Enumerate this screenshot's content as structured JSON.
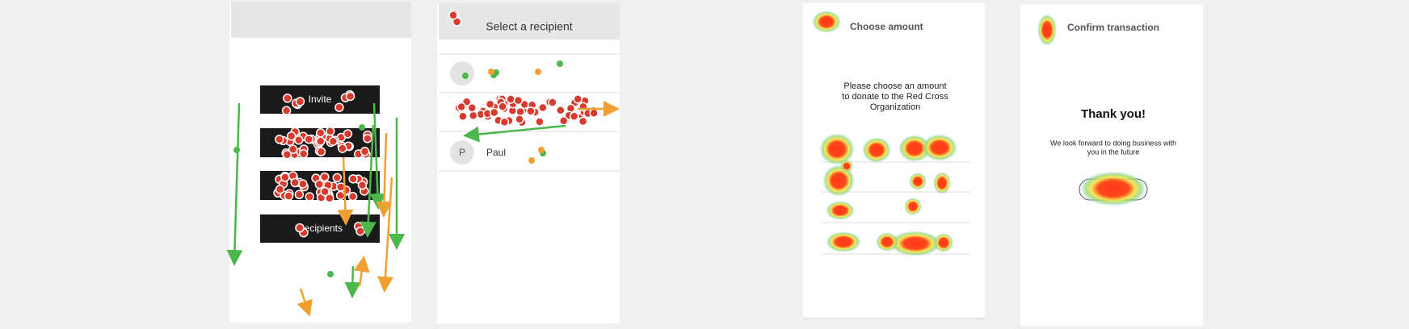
{
  "screens": [
    {
      "buttons": [
        "Invite",
        "Recipients"
      ]
    },
    {
      "header": {
        "title": "Select a recipient"
      },
      "rows": [
        {
          "avatar": "P",
          "name": "Paul"
        }
      ]
    },
    {
      "header": {
        "title": "Choose amount"
      },
      "prompt": [
        "Please choose an amount",
        "to donate to the Red Cross",
        "Organization"
      ]
    },
    {
      "header": {
        "title": "Confirm transaction"
      },
      "heading": "Thank you!",
      "message": [
        "We look forward to doing business with",
        "you in the future"
      ]
    }
  ]
}
